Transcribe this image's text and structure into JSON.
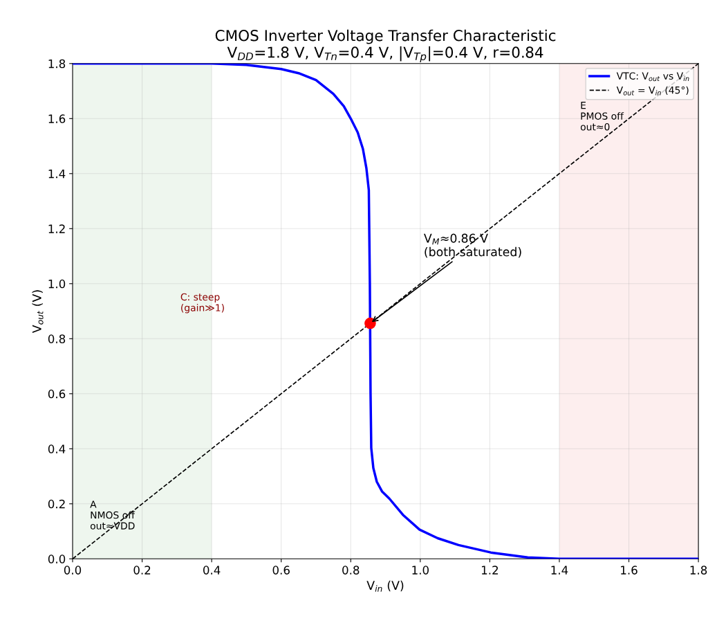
{
  "chart_data": {
    "type": "line",
    "title": "CMOS Inverter Voltage Transfer Characteristic\nV$_{DD}$=1.8 V, V$_{Tn}$=0.4 V, |V$_{Tp}$|=0.4 V, r=0.84",
    "xlabel": "V$_{in}$ (V)",
    "ylabel": "V$_{out}$ (V)",
    "xlim": [
      0,
      1.8
    ],
    "ylim": [
      0,
      1.8
    ],
    "xticks": [
      {
        "value": 0,
        "label": "0.0"
      },
      0.2,
      0.4,
      0.6,
      0.8,
      {
        "value": 1,
        "label": "1.0"
      },
      1.2,
      1.4,
      1.6,
      1.8
    ],
    "yticks": [
      {
        "value": 0,
        "label": "0.0"
      },
      0.2,
      0.4,
      0.6,
      0.8,
      {
        "value": 1,
        "label": "1.0"
      },
      1.2,
      1.4,
      1.6,
      1.8
    ],
    "grid": true,
    "legend": "top right",
    "series": [
      {
        "name": "VTC: V$_{out}$ vs V$_{in}$",
        "color": "#0000ff",
        "line_style": "solid",
        "x": [
          0,
          0.4,
          0.5,
          0.6,
          0.65,
          0.7,
          0.75,
          0.78,
          0.8,
          0.82,
          0.835,
          0.845,
          0.852,
          0.855,
          0.857,
          0.859,
          0.865,
          0.875,
          0.89,
          0.911,
          0.95,
          0.998,
          1.05,
          1.11,
          1.203,
          1.309,
          1.4,
          1.8
        ],
        "values": [
          1.8,
          1.8,
          1.795,
          1.78,
          1.765,
          1.74,
          1.69,
          1.645,
          1.6,
          1.55,
          1.49,
          1.42,
          1.34,
          1.0,
          0.6,
          0.403,
          0.33,
          0.28,
          0.245,
          0.219,
          0.16,
          0.106,
          0.075,
          0.05,
          0.023,
          0.005,
          0,
          0
        ]
      },
      {
        "name": "V$_{out}$ = V$_{in}$ (45°)",
        "color": "#000000",
        "line_style": "dashed",
        "x": [
          0,
          1.8
        ],
        "values": [
          0,
          1.8
        ]
      },
      {
        "type": "scatter",
        "color": "#ff0000",
        "marker": "circle",
        "x": [
          0.856
        ],
        "values": [
          0.856
        ]
      }
    ],
    "bands": [
      {
        "axis": "x",
        "from": 0,
        "to": 0.4,
        "label": "A\nNMOS off\nout≈VDD",
        "color": "#eef6ee"
      },
      {
        "axis": "x",
        "from": 1.4,
        "to": 1.8,
        "label": "E\nPMOS off\nout≈0",
        "color": "#fdeeee"
      }
    ],
    "annotations": [
      {
        "text": "V$_{M}$≈0.86 V\n(both saturated)",
        "x": 0.856,
        "y": 0.856
      },
      "C: steep\n(gain≫1)"
    ]
  }
}
